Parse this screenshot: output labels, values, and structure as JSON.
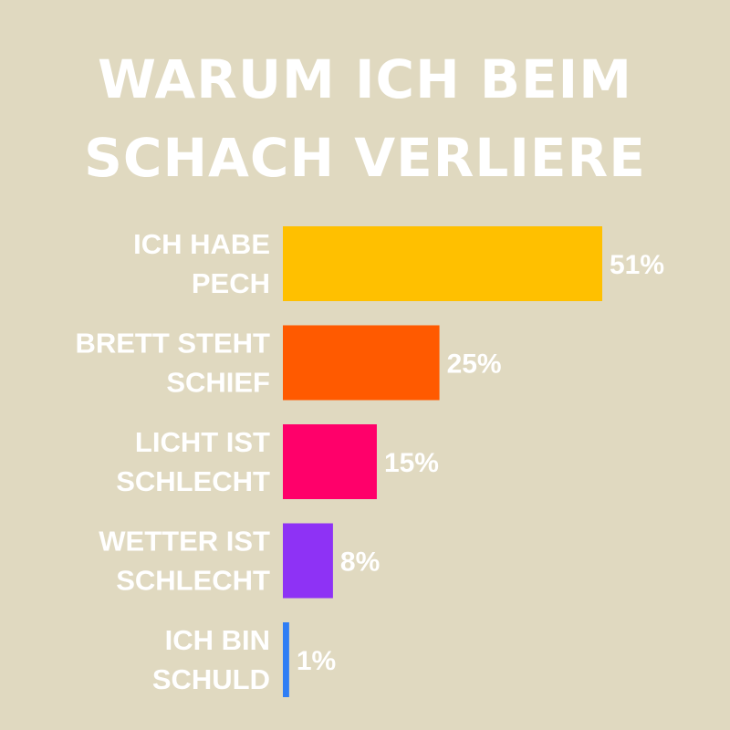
{
  "chart_data": {
    "type": "bar",
    "orientation": "horizontal",
    "title_lines": [
      "WARUM ICH BEIM",
      "SCHACH VERLIERE"
    ],
    "categories": [
      [
        "ICH HABE",
        "PECH"
      ],
      [
        "BRETT STEHT",
        "SCHIEF"
      ],
      [
        "LICHT IST",
        "SCHLECHT"
      ],
      [
        "WETTER IST",
        "SCHLECHT"
      ],
      [
        "ICH BIN",
        "SCHULD"
      ]
    ],
    "values": [
      51,
      25,
      15,
      8,
      1
    ],
    "value_labels": [
      "51%",
      "25%",
      "15%",
      "8%",
      "1%"
    ],
    "colors": [
      "#ffc000",
      "#ff5a00",
      "#ff006a",
      "#8e32f5",
      "#2f7ef5"
    ],
    "xlim": [
      0,
      51
    ],
    "grid": false,
    "background": "#e0d9c0",
    "text_color": "#ffffff"
  }
}
